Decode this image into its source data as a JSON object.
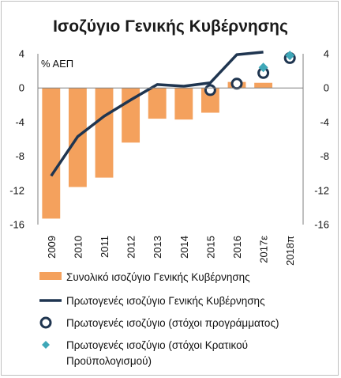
{
  "chart_data": {
    "type": "bar",
    "title": "Ισοζύγιο Γενικής Κυβέρνησης",
    "unit_label": "% ΑΕΠ",
    "categories": [
      "2009",
      "2010",
      "2011",
      "2012",
      "2013",
      "2014",
      "2015",
      "2016",
      "2017ε",
      "2018π"
    ],
    "ylim": [
      -16,
      4
    ],
    "yticks": [
      4,
      0,
      -4,
      -8,
      -12,
      -16
    ],
    "y_axes": "left and right (mirrored)",
    "grid": false,
    "legend_position": "bottom",
    "series": [
      {
        "name": "Συνολικό ισοζύγιο Γενικής Κυβέρνησης",
        "kind": "bar",
        "color": "#f4a15d",
        "values": [
          -15.3,
          -11.6,
          -10.5,
          -6.4,
          -3.6,
          -3.7,
          -2.9,
          0.7,
          0.6,
          null
        ]
      },
      {
        "name": "Πρωτογενές ισοζύγιο Γενικής Κυβέρνησης",
        "kind": "line",
        "color": "#1f3550",
        "values": [
          -10.3,
          -5.7,
          -3.3,
          -1.4,
          0.4,
          0.2,
          0.6,
          3.9,
          4.2,
          null
        ]
      },
      {
        "name": "Πρωτογενές ισοζύγιο (στόχοι προγράμματος)",
        "kind": "marker-circle",
        "color": "#1f3550",
        "values": [
          null,
          null,
          null,
          null,
          null,
          null,
          -0.25,
          0.5,
          1.75,
          3.5
        ]
      },
      {
        "name": "Πρωτογενές ισοζύγιο (στόχοι Κρατικού Προϋπολογισμού)",
        "kind": "marker-diamond",
        "color": "#3ea7b8",
        "values": [
          null,
          null,
          null,
          null,
          null,
          null,
          null,
          null,
          2.4,
          3.8
        ]
      }
    ],
    "legend_lines": [
      [
        "Συνολικό ισοζύγιο Γενικής Κυβέρνησης"
      ],
      [
        "Πρωτογενές ισοζύγιο Γενικής Κυβέρνησης"
      ],
      [
        "Πρωτογενές ισοζύγιο (στόχοι προγράμματος)"
      ],
      [
        "Πρωτογενές ισοζύγιο (στόχοι Κρατικού",
        "Προϋπολογισμού)"
      ]
    ]
  }
}
